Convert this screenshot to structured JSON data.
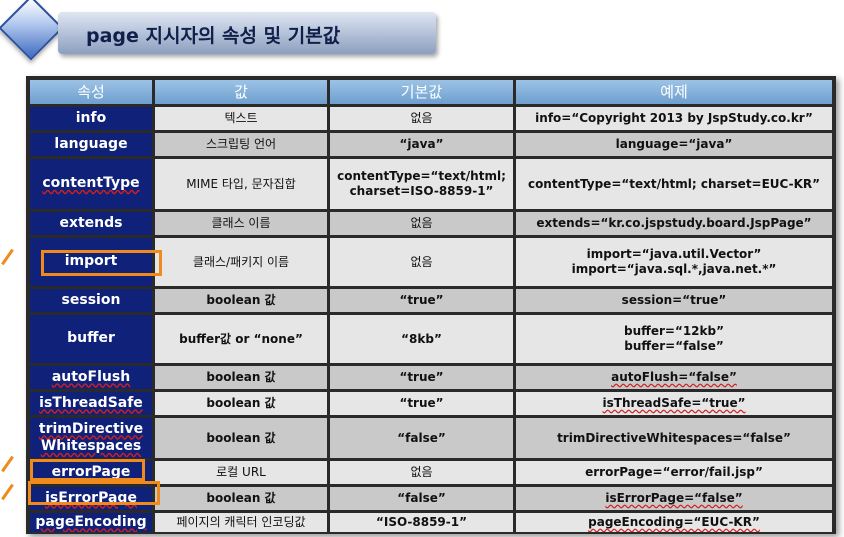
{
  "title": "page 지시자의 속성 및 기본값",
  "colors": {
    "header": "#6e9fcf",
    "name_column": "#10217a",
    "row_light": "#e6e6e6",
    "row_dark": "#c9c9c9",
    "highlight": "#f08a1c"
  },
  "table": {
    "headers": [
      "속성",
      "값",
      "기본값",
      "예제"
    ],
    "rows": [
      {
        "name": "info",
        "value": "텍스트",
        "default": "없음",
        "example": "info=“Copyright 2013 by JspStudy.co.kr”"
      },
      {
        "name": "language",
        "value": "스크립팅 언어",
        "default": "“java”",
        "example": "language=“java”"
      },
      {
        "name": "contentType",
        "value": "MIME 타입, 문자집합",
        "default": "contentType=“text/html;charset=ISO-8859-1”",
        "example": "contentType=“text/html; charset=EUC-KR”"
      },
      {
        "name": "extends",
        "value": "클래스 이름",
        "default": "없음",
        "example": "extends=“kr.co.jspstudy.board.JspPage”"
      },
      {
        "name": "import",
        "value": "클래스/패키지 이름",
        "default": "없음",
        "example": "import=“java.util.Vector”\nimport=“java.sql.*,java.net.*”"
      },
      {
        "name": "session",
        "value": "boolean 값",
        "default": "“true”",
        "example": "session=“true”"
      },
      {
        "name": "buffer",
        "value": "buffer값 or “none”",
        "default": "“8kb”",
        "example": "buffer=“12kb”\nbuffer=“false”"
      },
      {
        "name": "autoFlush",
        "value": "boolean 값",
        "default": "“true”",
        "example": "autoFlush=“false”"
      },
      {
        "name": "isThreadSafe",
        "value": "boolean 값",
        "default": "“true”",
        "example": "isThreadSafe=“true”"
      },
      {
        "name": "trimDirective\nWhitespaces",
        "value": "boolean 값",
        "default": "“false”",
        "example": "trimDirectiveWhitespaces=“false”"
      },
      {
        "name": "errorPage",
        "value": "로컬 URL",
        "default": "없음",
        "example": "errorPage=“error/fail.jsp”"
      },
      {
        "name": "isErrorPage",
        "value": "boolean 값",
        "default": "“false”",
        "example": "isErrorPage=“false”"
      },
      {
        "name": "pageEncoding",
        "value": "페이지의 캐릭터 인코딩값",
        "default": "“ISO-8859-1”",
        "example": "pageEncoding=“EUC-KR”"
      }
    ]
  }
}
